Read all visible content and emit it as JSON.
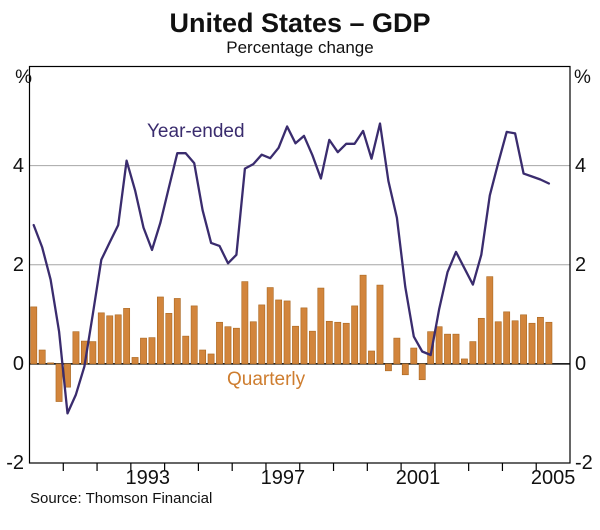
{
  "header": {
    "title": "United States – GDP",
    "subtitle": "Percentage change"
  },
  "source_note": "Source: Thomson Financial",
  "axes": {
    "unit_left": "%",
    "unit_right": "%",
    "y_tick_values": [
      4,
      2,
      0,
      -2
    ],
    "x_year_labels": [
      "1993",
      "1997",
      "2001",
      "2005"
    ]
  },
  "series_labels": {
    "line": "Year-ended",
    "bar": "Quarterly"
  },
  "colors": {
    "line": "#3A2C6E",
    "bar_fill": "#D2853C",
    "bar_edge": "#A9661F",
    "grid": "#A6A6A6",
    "axis": "#000000"
  },
  "chart_data": {
    "type": "bar+line",
    "title": "United States – GDP",
    "subtitle": "Percentage change",
    "xlabel": "",
    "ylabel": "%",
    "ylim": [
      -2,
      6
    ],
    "gridline_values": [
      2,
      4
    ],
    "zero_line": true,
    "legend_position": "inline-annotations",
    "x_start_year": 1990,
    "x_end_year": 2006,
    "x_tick_years_labeled": [
      1993,
      1997,
      2001,
      2005
    ],
    "categories": [
      "1990Q1",
      "1990Q2",
      "1990Q3",
      "1990Q4",
      "1991Q1",
      "1991Q2",
      "1991Q3",
      "1991Q4",
      "1992Q1",
      "1992Q2",
      "1992Q3",
      "1992Q4",
      "1993Q1",
      "1993Q2",
      "1993Q3",
      "1993Q4",
      "1994Q1",
      "1994Q2",
      "1994Q3",
      "1994Q4",
      "1995Q1",
      "1995Q2",
      "1995Q3",
      "1995Q4",
      "1996Q1",
      "1996Q2",
      "1996Q3",
      "1996Q4",
      "1997Q1",
      "1997Q2",
      "1997Q3",
      "1997Q4",
      "1998Q1",
      "1998Q2",
      "1998Q3",
      "1998Q4",
      "1999Q1",
      "1999Q2",
      "1999Q3",
      "1999Q4",
      "2000Q1",
      "2000Q2",
      "2000Q3",
      "2000Q4",
      "2001Q1",
      "2001Q2",
      "2001Q3",
      "2001Q4",
      "2002Q1",
      "2002Q2",
      "2002Q3",
      "2002Q4",
      "2003Q1",
      "2003Q2",
      "2003Q3",
      "2003Q4",
      "2004Q1",
      "2004Q2",
      "2004Q3",
      "2004Q4",
      "2005Q1",
      "2005Q2"
    ],
    "series": [
      {
        "name": "Quarterly",
        "type": "bar",
        "values": [
          1.15,
          0.28,
          0.02,
          -0.76,
          -0.47,
          0.65,
          0.46,
          0.45,
          1.03,
          0.97,
          0.99,
          1.12,
          0.13,
          0.52,
          0.53,
          1.35,
          1.02,
          1.32,
          0.56,
          1.17,
          0.28,
          0.2,
          0.84,
          0.75,
          0.72,
          1.66,
          0.85,
          1.19,
          1.54,
          1.29,
          1.27,
          0.76,
          1.13,
          0.66,
          1.53,
          0.86,
          0.84,
          0.82,
          1.17,
          1.79,
          0.26,
          1.59,
          -0.14,
          0.52,
          -0.22,
          0.32,
          -0.32,
          0.65,
          0.75,
          0.6,
          0.6,
          0.1,
          0.45,
          0.92,
          1.76,
          0.85,
          1.05,
          0.87,
          0.99,
          0.82,
          0.94,
          0.84
        ]
      },
      {
        "name": "Year-ended",
        "type": "line",
        "values": [
          2.8,
          2.35,
          1.7,
          0.65,
          -1.0,
          -0.62,
          -0.05,
          1.0,
          2.1,
          2.45,
          2.8,
          4.1,
          3.5,
          2.75,
          2.3,
          2.85,
          3.55,
          4.25,
          4.25,
          4.05,
          3.1,
          2.44,
          2.38,
          2.03,
          2.2,
          3.94,
          4.03,
          4.22,
          4.15,
          4.36,
          4.79,
          4.45,
          4.6,
          4.21,
          3.74,
          4.52,
          4.27,
          4.44,
          4.44,
          4.7,
          4.14,
          4.85,
          3.69,
          2.95,
          1.55,
          0.55,
          0.25,
          0.18,
          1.1,
          1.85,
          2.26,
          1.93,
          1.6,
          2.2,
          3.4,
          4.05,
          4.68,
          4.65,
          3.84,
          3.78,
          3.72,
          3.64
        ]
      }
    ]
  }
}
